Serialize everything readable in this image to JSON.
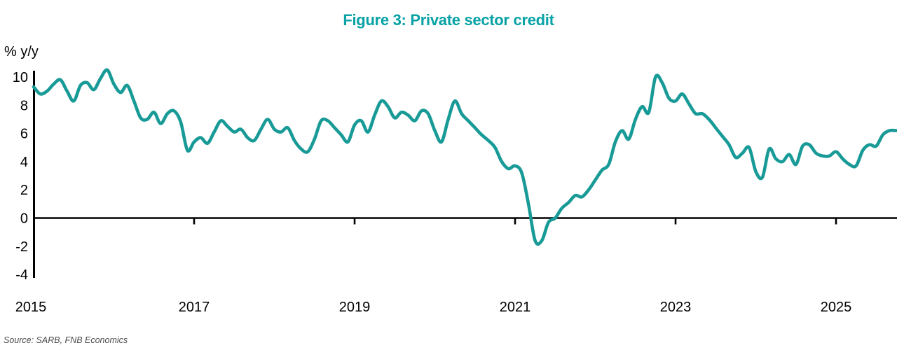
{
  "title": {
    "text": "Figure 3: Private sector credit"
  },
  "colors": {
    "title_teal": "#08a2a6",
    "line_teal": "#189a97",
    "axis_black": "#000000",
    "source_gray": "#4d4d4d"
  },
  "y_axis": {
    "unit_label": "% y/y",
    "ticks": [
      10,
      8,
      6,
      4,
      2,
      0,
      -2,
      -4
    ]
  },
  "x_axis": {
    "tick_years": [
      2015,
      2017,
      2019,
      2021,
      2023,
      2025
    ]
  },
  "source": "Source: SARB, FNB Economics",
  "chart_data": {
    "type": "line",
    "title": "Figure 3: Private sector credit",
    "ylabel": "% y/y",
    "ylim": [
      -4,
      10
    ],
    "x_ticks_years": [
      2015,
      2017,
      2019,
      2021,
      2023,
      2025
    ],
    "grid": false,
    "legend": false,
    "frequency": "monthly",
    "x_start": "2015-01",
    "x_end": "2025-10",
    "series_name": "Private sector credit extension, % y/y",
    "values_by_year": {
      "2015": [
        9.3,
        8.8,
        9.0,
        9.5,
        9.8,
        9.0,
        8.3,
        9.4,
        9.6,
        9.1,
        9.9,
        10.5
      ],
      "2016": [
        9.5,
        8.9,
        9.4,
        8.3,
        7.1,
        7.0,
        7.5,
        6.7,
        7.4,
        7.6,
        6.8,
        4.8
      ],
      "2017": [
        5.4,
        5.7,
        5.3,
        6.1,
        6.9,
        6.5,
        6.1,
        6.3,
        5.7,
        5.5,
        6.3,
        7.0
      ],
      "2018": [
        6.3,
        6.1,
        6.4,
        5.5,
        4.9,
        4.7,
        5.6,
        6.9,
        6.9,
        6.4,
        5.9,
        5.4
      ],
      "2019": [
        6.6,
        6.9,
        6.1,
        7.3,
        8.3,
        7.9,
        7.1,
        7.5,
        7.3,
        6.9,
        7.6,
        7.4
      ],
      "2020": [
        6.2,
        5.4,
        7.0,
        8.3,
        7.4,
        6.9,
        6.4,
        5.9,
        5.5,
        5.0,
        4.0,
        3.5
      ],
      "2021": [
        3.7,
        3.2,
        1.0,
        -1.6,
        -1.6,
        -0.3,
        0.0,
        0.7,
        1.1,
        1.6,
        1.5,
        2.0
      ],
      "2022": [
        2.7,
        3.4,
        3.8,
        5.4,
        6.2,
        5.6,
        7.0,
        7.9,
        7.5,
        10.0,
        9.6,
        8.5
      ],
      "2023": [
        8.3,
        8.8,
        8.1,
        7.4,
        7.4,
        7.0,
        6.4,
        5.8,
        5.2,
        4.3,
        4.6,
        5.0
      ],
      "2024": [
        3.3,
        2.9,
        4.9,
        4.2,
        4.0,
        4.5,
        3.8,
        5.1,
        5.2,
        4.6,
        4.4,
        4.4
      ],
      "2025": [
        4.7,
        4.2,
        3.8,
        3.7,
        4.8,
        5.2,
        5.1,
        5.9,
        6.2,
        6.2
      ]
    }
  }
}
